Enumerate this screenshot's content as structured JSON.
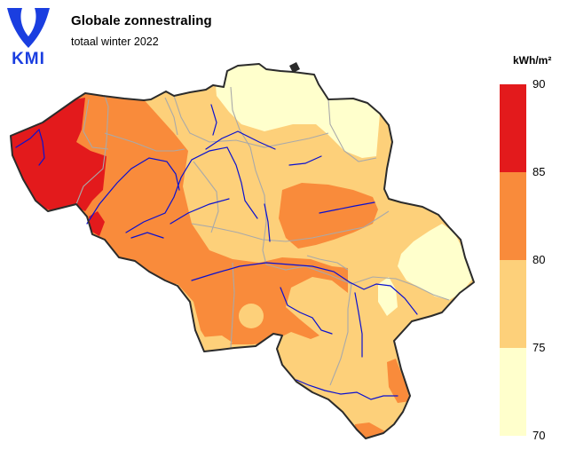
{
  "logo": {
    "text": "KMI",
    "color": "#1a3ee0"
  },
  "header": {
    "title": "Globale zonnestraling",
    "subtitle": "totaal winter 2022"
  },
  "legend": {
    "unit": "kWh/m²",
    "ticks": [
      "90",
      "85",
      "80",
      "75",
      "70"
    ],
    "classes": [
      {
        "from": 85,
        "to": 90,
        "color": "#e31a1c"
      },
      {
        "from": 80,
        "to": 85,
        "color": "#f98b3b"
      },
      {
        "from": 75,
        "to": 80,
        "color": "#fdd07a"
      },
      {
        "from": 70,
        "to": 75,
        "color": "#ffffcc"
      }
    ]
  },
  "map": {
    "country_fill": "#fdd07a",
    "border_color": "#2b2b2b",
    "province_color": "#a9a9a9",
    "river_color": "#0a10d0"
  }
}
